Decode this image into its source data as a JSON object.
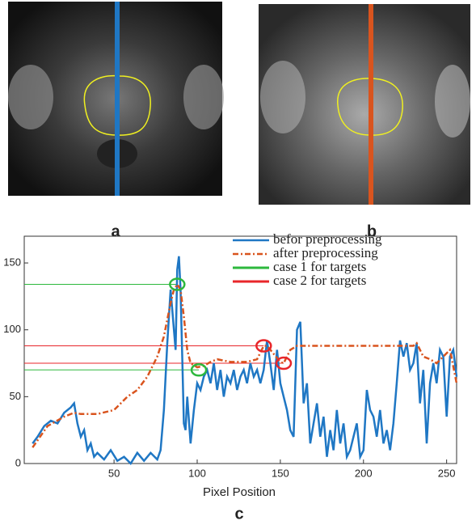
{
  "panel_labels": [
    "a",
    "b",
    "c"
  ],
  "chart_data": {
    "type": "line",
    "x_label": "Pixel Position",
    "xlim": [
      -4,
      256
    ],
    "xticks": [
      50,
      100,
      150,
      200,
      250
    ],
    "ylim": [
      0,
      170
    ],
    "yticks": [
      0,
      50,
      100,
      150
    ],
    "legend": "upper right",
    "series": [
      {
        "name": "befor preprocessing",
        "color": "#1f77c4",
        "style": "solid",
        "x": [
          1,
          4,
          8,
          12,
          16,
          20,
          24,
          26,
          28,
          30,
          32,
          34,
          36,
          38,
          40,
          44,
          48,
          52,
          56,
          60,
          64,
          68,
          72,
          76,
          78,
          80,
          82,
          84,
          86,
          87,
          88,
          89,
          90,
          91,
          92,
          93,
          94,
          96,
          98,
          100,
          102,
          104,
          106,
          108,
          110,
          112,
          114,
          116,
          118,
          120,
          122,
          124,
          126,
          128,
          130,
          132,
          134,
          136,
          138,
          140,
          142,
          144,
          146,
          148,
          150,
          152,
          154,
          156,
          158,
          160,
          162,
          164,
          166,
          168,
          170,
          172,
          174,
          176,
          178,
          180,
          182,
          184,
          186,
          188,
          190,
          192,
          194,
          196,
          198,
          200,
          202,
          204,
          206,
          208,
          210,
          212,
          214,
          216,
          218,
          220,
          222,
          224,
          226,
          228,
          230,
          232,
          234,
          236,
          238,
          240,
          242,
          244,
          246,
          248,
          250,
          252,
          254,
          256
        ],
        "values": [
          15,
          20,
          28,
          32,
          30,
          38,
          42,
          45,
          30,
          20,
          25,
          10,
          15,
          5,
          8,
          3,
          10,
          2,
          5,
          0,
          8,
          2,
          8,
          3,
          10,
          40,
          90,
          130,
          100,
          85,
          145,
          155,
          130,
          80,
          30,
          25,
          50,
          15,
          40,
          60,
          55,
          65,
          70,
          60,
          75,
          55,
          70,
          50,
          65,
          60,
          70,
          55,
          65,
          70,
          60,
          75,
          65,
          70,
          60,
          70,
          92,
          75,
          55,
          85,
          60,
          50,
          40,
          25,
          20,
          100,
          106,
          45,
          60,
          15,
          30,
          45,
          20,
          35,
          5,
          25,
          10,
          40,
          15,
          30,
          5,
          10,
          20,
          30,
          5,
          10,
          55,
          40,
          35,
          20,
          40,
          15,
          25,
          10,
          30,
          60,
          92,
          80,
          90,
          70,
          75,
          90,
          45,
          70,
          15,
          60,
          75,
          60,
          85,
          80,
          35,
          80,
          85,
          65
        ]
      },
      {
        "name": "after preprocessing",
        "color": "#d9541e",
        "style": "dashdot",
        "x": [
          1,
          10,
          20,
          26,
          30,
          40,
          50,
          58,
          64,
          70,
          76,
          80,
          84,
          86,
          88,
          90,
          92,
          94,
          96,
          100,
          104,
          108,
          112,
          120,
          130,
          136,
          140,
          142,
          146,
          150,
          152,
          156,
          160,
          170,
          200,
          220,
          230,
          232,
          236,
          240,
          244,
          248,
          252,
          256
        ],
        "values": [
          12,
          28,
          35,
          38,
          37,
          37,
          40,
          50,
          55,
          65,
          80,
          95,
          120,
          130,
          134,
          130,
          110,
          85,
          75,
          72,
          73,
          76,
          78,
          76,
          76,
          78,
          88,
          88,
          82,
          76,
          75,
          85,
          88,
          88,
          88,
          88,
          88,
          90,
          80,
          78,
          75,
          80,
          85,
          60
        ]
      },
      {
        "name": "case 1 for targets",
        "color": "#2db83d",
        "style": "target",
        "x": [
          88,
          101
        ],
        "values": [
          134,
          70
        ]
      },
      {
        "name": "case 2 for targets",
        "color": "#e8262a",
        "style": "target",
        "x": [
          140,
          152
        ],
        "values": [
          88,
          75
        ]
      }
    ]
  }
}
